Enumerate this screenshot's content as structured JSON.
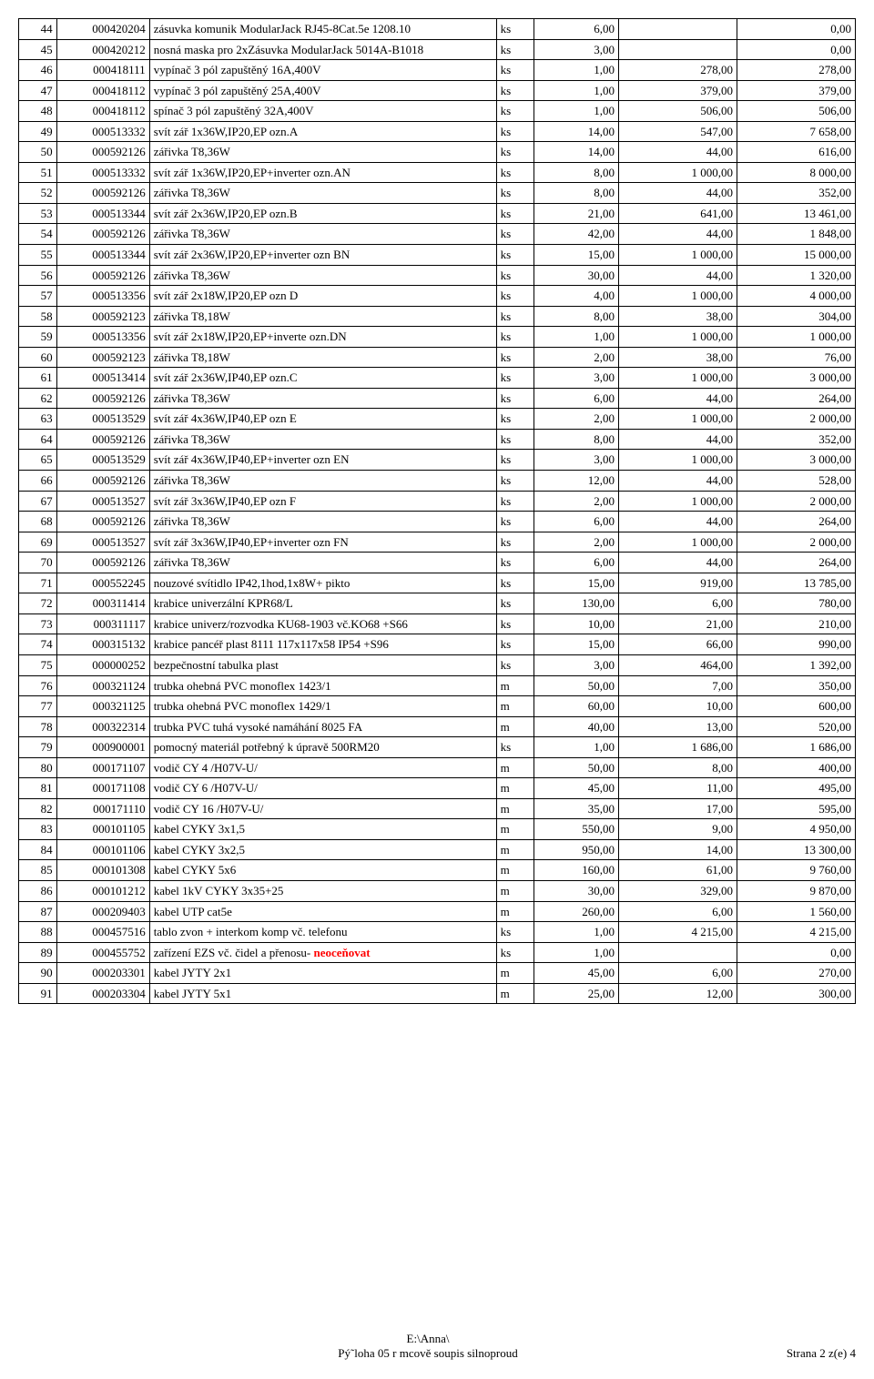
{
  "rows": [
    [
      "44",
      "000420204",
      "zásuvka komunik ModularJack RJ45-8Cat.5e 1208.10",
      "ks",
      "6,00",
      "",
      "0,00"
    ],
    [
      "45",
      "000420212",
      "nosná maska pro 2xZásuvka ModularJack 5014A-B1018",
      "ks",
      "3,00",
      "",
      "0,00"
    ],
    [
      "46",
      "000418111",
      "vypínač 3 pól zapuštěný 16A,400V",
      "ks",
      "1,00",
      "278,00",
      "278,00"
    ],
    [
      "47",
      "000418112",
      "vypínač 3 pól zapuštěný 25A,400V",
      "ks",
      "1,00",
      "379,00",
      "379,00"
    ],
    [
      "48",
      "000418112",
      "spínač 3 pól zapuštěný 32A,400V",
      "ks",
      "1,00",
      "506,00",
      "506,00"
    ],
    [
      "49",
      "000513332",
      "svít zář 1x36W,IP20,EP ozn.A",
      "ks",
      "14,00",
      "547,00",
      "7 658,00"
    ],
    [
      "50",
      "000592126",
      "zářivka T8,36W",
      "ks",
      "14,00",
      "44,00",
      "616,00"
    ],
    [
      "51",
      "000513332",
      "svít zář 1x36W,IP20,EP+inverter ozn.AN",
      "ks",
      "8,00",
      "1 000,00",
      "8 000,00"
    ],
    [
      "52",
      "000592126",
      "zářivka T8,36W",
      "ks",
      "8,00",
      "44,00",
      "352,00"
    ],
    [
      "53",
      "000513344",
      "svít zář 2x36W,IP20,EP ozn.B",
      "ks",
      "21,00",
      "641,00",
      "13 461,00"
    ],
    [
      "54",
      "000592126",
      "zářivka T8,36W",
      "ks",
      "42,00",
      "44,00",
      "1 848,00"
    ],
    [
      "55",
      "000513344",
      "svít zář 2x36W,IP20,EP+inverter ozn BN",
      "ks",
      "15,00",
      "1 000,00",
      "15 000,00"
    ],
    [
      "56",
      "000592126",
      "zářivka T8,36W",
      "ks",
      "30,00",
      "44,00",
      "1 320,00"
    ],
    [
      "57",
      "000513356",
      "svít zář 2x18W,IP20,EP ozn D",
      "ks",
      "4,00",
      "1 000,00",
      "4 000,00"
    ],
    [
      "58",
      "000592123",
      "zářivka T8,18W",
      "ks",
      "8,00",
      "38,00",
      "304,00"
    ],
    [
      "59",
      "000513356",
      "svít zář 2x18W,IP20,EP+inverte ozn.DN",
      "ks",
      "1,00",
      "1 000,00",
      "1 000,00"
    ],
    [
      "60",
      "000592123",
      "zářivka T8,18W",
      "ks",
      "2,00",
      "38,00",
      "76,00"
    ],
    [
      "61",
      "000513414",
      "svít zář 2x36W,IP40,EP ozn.C",
      "ks",
      "3,00",
      "1 000,00",
      "3 000,00"
    ],
    [
      "62",
      "000592126",
      "zářivka T8,36W",
      "ks",
      "6,00",
      "44,00",
      "264,00"
    ],
    [
      "63",
      "000513529",
      "svít zář 4x36W,IP40,EP ozn E",
      "ks",
      "2,00",
      "1 000,00",
      "2 000,00"
    ],
    [
      "64",
      "000592126",
      "zářivka T8,36W",
      "ks",
      "8,00",
      "44,00",
      "352,00"
    ],
    [
      "65",
      "000513529",
      "svít zář 4x36W,IP40,EP+inverter ozn EN",
      "ks",
      "3,00",
      "1 000,00",
      "3 000,00"
    ],
    [
      "66",
      "000592126",
      "zářivka T8,36W",
      "ks",
      "12,00",
      "44,00",
      "528,00"
    ],
    [
      "67",
      "000513527",
      "svít zář 3x36W,IP40,EP ozn F",
      "ks",
      "2,00",
      "1 000,00",
      "2 000,00"
    ],
    [
      "68",
      "000592126",
      "zářivka T8,36W",
      "ks",
      "6,00",
      "44,00",
      "264,00"
    ],
    [
      "69",
      "000513527",
      "svít zář 3x36W,IP40,EP+inverter ozn FN",
      "ks",
      "2,00",
      "1 000,00",
      "2 000,00"
    ],
    [
      "70",
      "000592126",
      "zářivka T8,36W",
      "ks",
      "6,00",
      "44,00",
      "264,00"
    ],
    [
      "71",
      "000552245",
      "nouzové svítidlo IP42,1hod,1x8W+ pikto",
      "ks",
      "15,00",
      "919,00",
      "13 785,00"
    ],
    [
      "72",
      "000311414",
      "krabice univerzální KPR68/L",
      "ks",
      "130,00",
      "6,00",
      "780,00"
    ],
    [
      "73",
      "000311117",
      "krabice univerz/rozvodka KU68-1903 vč.KO68 +S66",
      "ks",
      "10,00",
      "21,00",
      "210,00"
    ],
    [
      "74",
      "000315132",
      "krabice pancéř plast 8111 117x117x58 IP54 +S96",
      "ks",
      "15,00",
      "66,00",
      "990,00"
    ],
    [
      "75",
      "000000252",
      "bezpečnostní tabulka plast",
      "ks",
      "3,00",
      "464,00",
      "1 392,00"
    ],
    [
      "76",
      "000321124",
      "trubka ohebná PVC monoflex 1423/1",
      "m",
      "50,00",
      "7,00",
      "350,00"
    ],
    [
      "77",
      "000321125",
      "trubka ohebná PVC monoflex 1429/1",
      "m",
      "60,00",
      "10,00",
      "600,00"
    ],
    [
      "78",
      "000322314",
      "trubka PVC tuhá vysoké namáhání 8025 FA",
      "m",
      "40,00",
      "13,00",
      "520,00"
    ],
    [
      "79",
      "000900001",
      "pomocný materiál potřebný k úpravě 500RM20",
      "ks",
      "1,00",
      "1 686,00",
      "1 686,00"
    ],
    [
      "80",
      "000171107",
      "vodič CY 4  /H07V-U/",
      "m",
      "50,00",
      "8,00",
      "400,00"
    ],
    [
      "81",
      "000171108",
      "vodič CY 6  /H07V-U/",
      "m",
      "45,00",
      "11,00",
      "495,00"
    ],
    [
      "82",
      "000171110",
      "vodič CY 16  /H07V-U/",
      "m",
      "35,00",
      "17,00",
      "595,00"
    ],
    [
      "83",
      "000101105",
      "kabel CYKY 3x1,5",
      "m",
      "550,00",
      "9,00",
      "4 950,00"
    ],
    [
      "84",
      "000101106",
      "kabel CYKY 3x2,5",
      "m",
      "950,00",
      "14,00",
      "13 300,00"
    ],
    [
      "85",
      "000101308",
      "kabel CYKY 5x6",
      "m",
      "160,00",
      "61,00",
      "9 760,00"
    ],
    [
      "86",
      "000101212",
      "kabel 1kV CYKY 3x35+25",
      "m",
      "30,00",
      "329,00",
      "9 870,00"
    ],
    [
      "87",
      "000209403",
      "kabel UTP cat5e",
      "m",
      "260,00",
      "6,00",
      "1 560,00"
    ],
    [
      "88",
      "000457516",
      "tablo zvon + interkom komp vč. telefonu",
      "ks",
      "1,00",
      "4 215,00",
      "4 215,00"
    ],
    [
      "89",
      "000455752",
      "zařízení EZS vč. čidel a přenosu- <span class=\"red\">neoceňovat</span>",
      "ks",
      "1,00",
      "",
      "0,00"
    ],
    [
      "90",
      "000203301",
      "kabel JYTY 2x1",
      "m",
      "45,00",
      "6,00",
      "270,00"
    ],
    [
      "91",
      "000203304",
      "kabel JYTY 5x1",
      "m",
      "25,00",
      "12,00",
      "300,00"
    ]
  ],
  "footer": {
    "path1": "E:\\Anna\\",
    "path2": "Pý˜loha 05 r mcově soupis silnoproud",
    "page": "Strana 2 z(e) 4"
  }
}
